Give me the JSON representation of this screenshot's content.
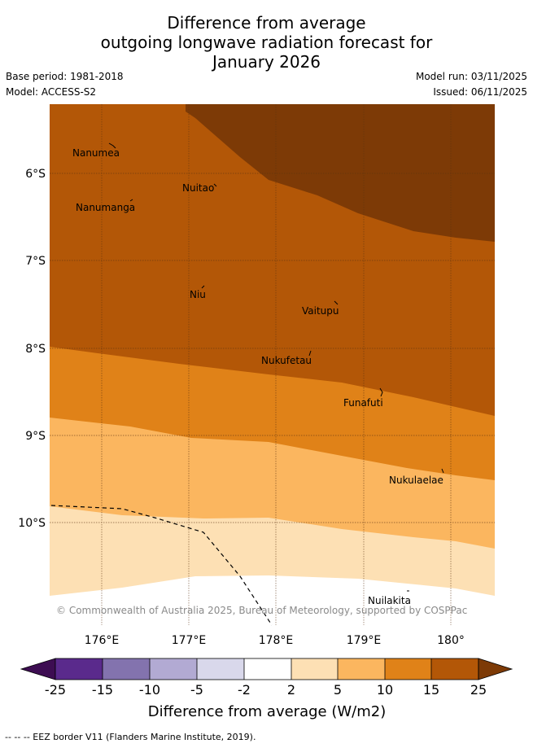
{
  "title": {
    "line1": "Difference from average",
    "line2": "outgoing longwave radiation forecast for",
    "line3": "January 2026"
  },
  "meta": {
    "base_period": "Base period: 1981-2018",
    "model": "Model: ACCESS-S2",
    "model_run": "Model run: 03/11/2025",
    "issued": "Issued: 06/11/2025"
  },
  "map": {
    "x_ticks": [
      "176°E",
      "177°E",
      "178°E",
      "179°E",
      "180°"
    ],
    "y_ticks": [
      "6°S",
      "7°S",
      "8°S",
      "9°S",
      "10°S"
    ],
    "places": [
      "Nanumea",
      "Nuitao",
      "Nanumanga",
      "Niu",
      "Vaitupu",
      "Nukufetau",
      "Funafuti",
      "Nukulaelae",
      "Nuilakita"
    ],
    "copyright": "© Commonwealth of Australia 2025, Bureau of Meteorology, supported by COSPPac"
  },
  "colorbar": {
    "ticks": [
      "-25",
      "-15",
      "-10",
      "-5",
      "-2",
      "2",
      "5",
      "10",
      "15",
      "25"
    ],
    "label": "Difference from average (W/m2)",
    "colors": {
      "below_min": "#3d0d52",
      "neg25_neg15": "#5a2a8c",
      "neg15_neg10": "#8373ae",
      "neg10_neg5": "#b2aad3",
      "neg5_neg2": "#d9d8eb",
      "neg2_2": "#ffffff",
      "c2_5": "#fde0b4",
      "c5_10": "#fbb65f",
      "c10_15": "#e08218",
      "c15_25": "#b35707",
      "above_max": "#7d3a06"
    }
  },
  "footer": "-- -- -- EEZ border V11 (Flanders Marine Institute, 2019)."
}
